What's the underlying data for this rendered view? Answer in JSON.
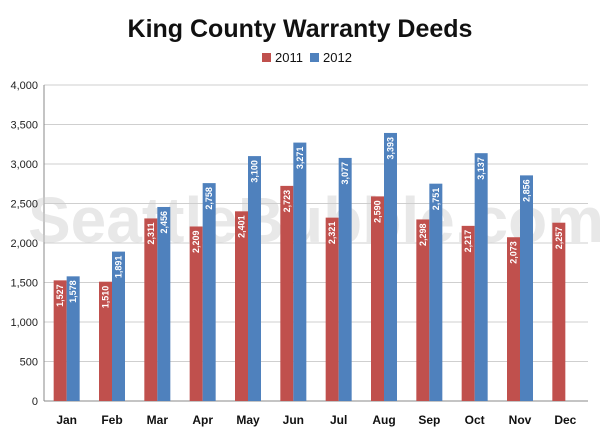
{
  "chart_data": {
    "type": "bar",
    "title": "King County Warranty Deeds",
    "categories": [
      "Jan",
      "Feb",
      "Mar",
      "Apr",
      "May",
      "Jun",
      "Jul",
      "Aug",
      "Sep",
      "Oct",
      "Nov",
      "Dec"
    ],
    "series": [
      {
        "name": "2011",
        "color": "#c0504d",
        "values": [
          1527,
          1510,
          2311,
          2209,
          2401,
          2723,
          2321,
          2590,
          2298,
          2217,
          2073,
          2257
        ],
        "labels": [
          "1,527",
          "1,510",
          "2,311",
          "2,209",
          "2,401",
          "2,723",
          "2,321",
          "2,590",
          "2,298",
          "2,217",
          "2,073",
          "2,257"
        ]
      },
      {
        "name": "2012",
        "color": "#4f81bd",
        "values": [
          1578,
          1891,
          2456,
          2758,
          3100,
          3271,
          3077,
          3393,
          2751,
          3137,
          2856,
          null
        ],
        "labels": [
          "1,578",
          "1,891",
          "2,456",
          "2,758",
          "3,100",
          "3,271",
          "3,077",
          "3,393",
          "2,751",
          "3,137",
          "2,856",
          null
        ]
      }
    ],
    "ylim": [
      0,
      4000
    ],
    "yticks": [
      0,
      500,
      1000,
      1500,
      2000,
      2500,
      3000,
      3500,
      4000
    ],
    "ytick_labels": [
      "0",
      "500",
      "1,000",
      "1,500",
      "2,000",
      "2,500",
      "3,000",
      "3,500",
      "4,000"
    ],
    "grid": true,
    "legend_position": "top-center",
    "watermark": "SeattleBubble.com"
  }
}
